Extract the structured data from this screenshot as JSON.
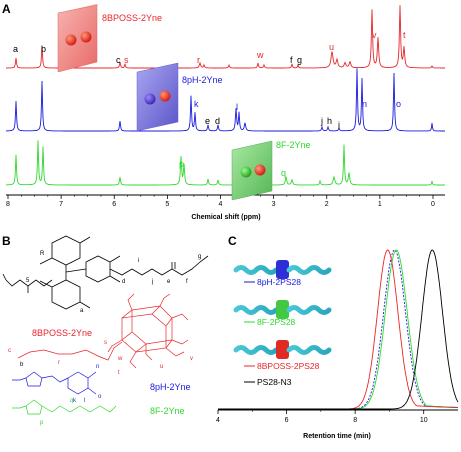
{
  "panels": {
    "A": {
      "letter": "A",
      "xlabel": "Chemical shift (ppm)",
      "xticks": [
        "8",
        "7",
        "6",
        "5",
        "4",
        "3",
        "2",
        "1",
        "0"
      ],
      "compounds": [
        {
          "name": "8BPOSS-2Yne",
          "color": "#e8262b"
        },
        {
          "name": "8pH-2Yne",
          "color": "#1a1adf"
        },
        {
          "name": "8F-2Yne",
          "color": "#2fd82f"
        }
      ],
      "peak_labels_red": [
        "a",
        "b",
        "c",
        "s",
        "r",
        "w",
        "f",
        "g",
        "u",
        "v",
        "t"
      ],
      "peak_labels_blue": [
        "k",
        "e",
        "d",
        "l",
        "j",
        "h",
        "i",
        "n",
        "o"
      ],
      "peak_labels_green": [
        "p",
        "q"
      ]
    },
    "B": {
      "letter": "B",
      "labels": [
        {
          "text": "8BPOSS-2Yne",
          "color": "#e8262b"
        },
        {
          "text": "8pH-2Yne",
          "color": "#1a1adf"
        },
        {
          "text": "8F-2Yne",
          "color": "#2fd82f"
        }
      ],
      "atom_labels": [
        "R",
        "a",
        "b",
        "c",
        "d",
        "e",
        "f",
        "g",
        "i",
        "j",
        "r",
        "s",
        "w",
        "t",
        "u",
        "v",
        "k",
        "l",
        "n",
        "o",
        "p",
        "q",
        "5"
      ]
    },
    "C": {
      "letter": "C",
      "xlabel": "Retention time (min)",
      "xticks": [
        "4",
        "6",
        "8",
        "10"
      ],
      "legend": [
        {
          "text": "8pH-2PS28",
          "color": "#1a1adf"
        },
        {
          "text": "8F-2PS28",
          "color": "#2fd82f"
        },
        {
          "text": "8BPOSS-2PS28",
          "color": "#e8262b"
        },
        {
          "text": "PS28-N3",
          "color": "#000000"
        }
      ]
    }
  },
  "chart_data": {
    "type": "line",
    "xlabel": "Retention time (min)",
    "xlim": [
      4,
      11
    ],
    "series": [
      {
        "name": "8pH-2PS28",
        "peak_x": 9.15,
        "width": 0.32
      },
      {
        "name": "8F-2PS28",
        "peak_x": 9.2,
        "width": 0.32
      },
      {
        "name": "8BPOSS-2PS28",
        "peak_x": 8.95,
        "width": 0.3
      },
      {
        "name": "PS28-N3",
        "peak_x": 10.25,
        "width": 0.3
      }
    ]
  }
}
